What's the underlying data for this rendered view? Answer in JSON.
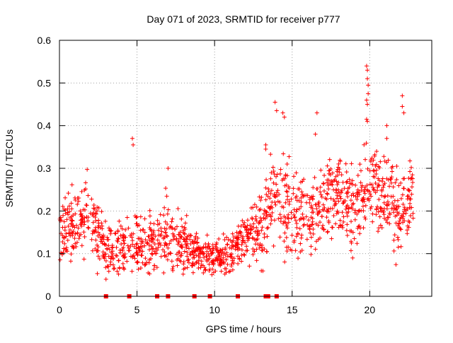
{
  "chart_data": {
    "type": "scatter",
    "title": "Day 071 of 2023, SRMTID for receiver p777",
    "xlabel": "GPS time / hours",
    "ylabel": "SRMTID / TECUs",
    "xlim": [
      0,
      24
    ],
    "ylim": [
      0,
      0.6
    ],
    "grid": true,
    "legend": "none",
    "colors": {
      "series": "#ff0000",
      "grid": "#a0a0a0",
      "axes": "#000000"
    },
    "x_ticks": [
      0,
      5,
      10,
      15,
      20
    ],
    "x_tick_labels": [
      "0",
      "5",
      "10",
      "15",
      "20"
    ],
    "y_ticks": [
      0,
      0.1,
      0.2,
      0.3,
      0.4,
      0.5,
      0.6
    ],
    "y_tick_labels": [
      "0",
      "0.1",
      "0.2",
      "0.3",
      "0.4",
      "0.5",
      "0.6"
    ],
    "series": [
      {
        "name": "SRMTID",
        "marker": "plus",
        "envelope_note": "approximate point cloud digitized from the figure",
        "hourly_profile": [
          {
            "hour": 0,
            "mean": 0.16,
            "spread": 0.05
          },
          {
            "hour": 1,
            "mean": 0.17,
            "spread": 0.05
          },
          {
            "hour": 2,
            "mean": 0.18,
            "spread": 0.05
          },
          {
            "hour": 3,
            "mean": 0.11,
            "spread": 0.04
          },
          {
            "hour": 4,
            "mean": 0.12,
            "spread": 0.05
          },
          {
            "hour": 5,
            "mean": 0.12,
            "spread": 0.05
          },
          {
            "hour": 6,
            "mean": 0.13,
            "spread": 0.05
          },
          {
            "hour": 7,
            "mean": 0.14,
            "spread": 0.05
          },
          {
            "hour": 8,
            "mean": 0.12,
            "spread": 0.04
          },
          {
            "hour": 9,
            "mean": 0.1,
            "spread": 0.03
          },
          {
            "hour": 10,
            "mean": 0.09,
            "spread": 0.03
          },
          {
            "hour": 11,
            "mean": 0.1,
            "spread": 0.03
          },
          {
            "hour": 12,
            "mean": 0.14,
            "spread": 0.04
          },
          {
            "hour": 13,
            "mean": 0.15,
            "spread": 0.05
          },
          {
            "hour": 14,
            "mean": 0.25,
            "spread": 0.07
          },
          {
            "hour": 15,
            "mean": 0.2,
            "spread": 0.07
          },
          {
            "hour": 16,
            "mean": 0.17,
            "spread": 0.06
          },
          {
            "hour": 17,
            "mean": 0.22,
            "spread": 0.06
          },
          {
            "hour": 18,
            "mean": 0.24,
            "spread": 0.06
          },
          {
            "hour": 19,
            "mean": 0.21,
            "spread": 0.06
          },
          {
            "hour": 20,
            "mean": 0.26,
            "spread": 0.06
          },
          {
            "hour": 21,
            "mean": 0.23,
            "spread": 0.06
          },
          {
            "hour": 22,
            "mean": 0.2,
            "spread": 0.06
          },
          {
            "hour": 22.8,
            "mean": 0.24,
            "spread": 0.06
          }
        ],
        "notable_points": [
          {
            "x": 4.7,
            "y": 0.37
          },
          {
            "x": 4.75,
            "y": 0.355
          },
          {
            "x": 7.0,
            "y": 0.3
          },
          {
            "x": 13.3,
            "y": 0.355
          },
          {
            "x": 13.3,
            "y": 0.345
          },
          {
            "x": 13.9,
            "y": 0.455
          },
          {
            "x": 14.0,
            "y": 0.435
          },
          {
            "x": 14.4,
            "y": 0.43
          },
          {
            "x": 14.5,
            "y": 0.42
          },
          {
            "x": 16.6,
            "y": 0.43
          },
          {
            "x": 16.5,
            "y": 0.38
          },
          {
            "x": 19.8,
            "y": 0.54
          },
          {
            "x": 19.85,
            "y": 0.53
          },
          {
            "x": 19.85,
            "y": 0.51
          },
          {
            "x": 19.9,
            "y": 0.495
          },
          {
            "x": 19.9,
            "y": 0.475
          },
          {
            "x": 19.8,
            "y": 0.46
          },
          {
            "x": 19.85,
            "y": 0.45
          },
          {
            "x": 19.8,
            "y": 0.415
          },
          {
            "x": 19.85,
            "y": 0.41
          },
          {
            "x": 21.1,
            "y": 0.4
          },
          {
            "x": 21.1,
            "y": 0.37
          },
          {
            "x": 22.1,
            "y": 0.47
          },
          {
            "x": 22.1,
            "y": 0.445
          },
          {
            "x": 22.2,
            "y": 0.43
          },
          {
            "x": 3.0,
            "y": 0.04
          },
          {
            "x": 18.9,
            "y": 0.09
          }
        ]
      },
      {
        "name": "zero-level markers",
        "marker": "square",
        "x": [
          3.0,
          4.5,
          6.3,
          7.0,
          8.7,
          9.7,
          11.5,
          13.3,
          13.45,
          14.0
        ],
        "y": [
          0,
          0,
          0,
          0,
          0,
          0,
          0,
          0,
          0,
          0
        ]
      }
    ]
  }
}
